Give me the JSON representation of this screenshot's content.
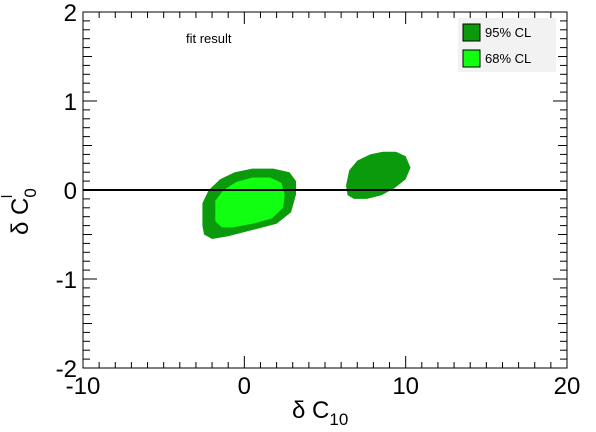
{
  "chart_data": {
    "type": "contour",
    "title": "",
    "annotation": "fit result",
    "xlabel": {
      "main": "δ C",
      "sub": "10"
    },
    "ylabel": {
      "main": "δ C",
      "sub": "0",
      "sup": "l"
    },
    "xlim": [
      -10,
      20
    ],
    "ylim": [
      -2,
      2
    ],
    "x_ticks": [
      -10,
      0,
      10,
      20
    ],
    "x_tick_labels": [
      "-10",
      "0",
      "10",
      "20"
    ],
    "y_ticks": [
      -2,
      -1,
      0,
      1,
      2
    ],
    "y_tick_labels": [
      "-2",
      "-1",
      "0",
      "1",
      "2"
    ],
    "reference_line_y": 0,
    "grid": false,
    "legend_position": "top-right",
    "legend": [
      {
        "label": "95% CL",
        "color": "#0b9a0b"
      },
      {
        "label": "68% CL",
        "color": "#11ff11"
      }
    ],
    "regions": [
      {
        "name": "95% CL",
        "color": "#0b9a0b",
        "polygons": [
          [
            [
              -2.6,
              -0.4
            ],
            [
              -2.6,
              -0.15
            ],
            [
              -2.2,
              0.0
            ],
            [
              -1.5,
              0.12
            ],
            [
              -0.6,
              0.2
            ],
            [
              0.5,
              0.24
            ],
            [
              1.8,
              0.24
            ],
            [
              2.8,
              0.2
            ],
            [
              3.2,
              0.1
            ],
            [
              3.2,
              -0.05
            ],
            [
              2.9,
              -0.25
            ],
            [
              2.0,
              -0.38
            ],
            [
              0.5,
              -0.45
            ],
            [
              -1.0,
              -0.52
            ],
            [
              -2.0,
              -0.55
            ],
            [
              -2.5,
              -0.5
            ]
          ],
          [
            [
              6.3,
              0.05
            ],
            [
              6.5,
              0.22
            ],
            [
              7.0,
              0.33
            ],
            [
              7.8,
              0.4
            ],
            [
              8.6,
              0.43
            ],
            [
              9.4,
              0.43
            ],
            [
              10.0,
              0.38
            ],
            [
              10.3,
              0.25
            ],
            [
              10.0,
              0.12
            ],
            [
              9.3,
              0.02
            ],
            [
              8.5,
              -0.06
            ],
            [
              7.6,
              -0.1
            ],
            [
              6.8,
              -0.1
            ],
            [
              6.4,
              -0.06
            ]
          ]
        ]
      },
      {
        "name": "68% CL",
        "color": "#11ff11",
        "polygons": [
          [
            [
              -1.8,
              -0.35
            ],
            [
              -1.8,
              -0.12
            ],
            [
              -1.3,
              0.0
            ],
            [
              -0.5,
              0.09
            ],
            [
              0.5,
              0.14
            ],
            [
              1.6,
              0.14
            ],
            [
              2.3,
              0.08
            ],
            [
              2.5,
              -0.05
            ],
            [
              2.4,
              -0.2
            ],
            [
              1.7,
              -0.32
            ],
            [
              0.5,
              -0.38
            ],
            [
              -0.7,
              -0.42
            ],
            [
              -1.4,
              -0.42
            ]
          ]
        ]
      }
    ]
  }
}
